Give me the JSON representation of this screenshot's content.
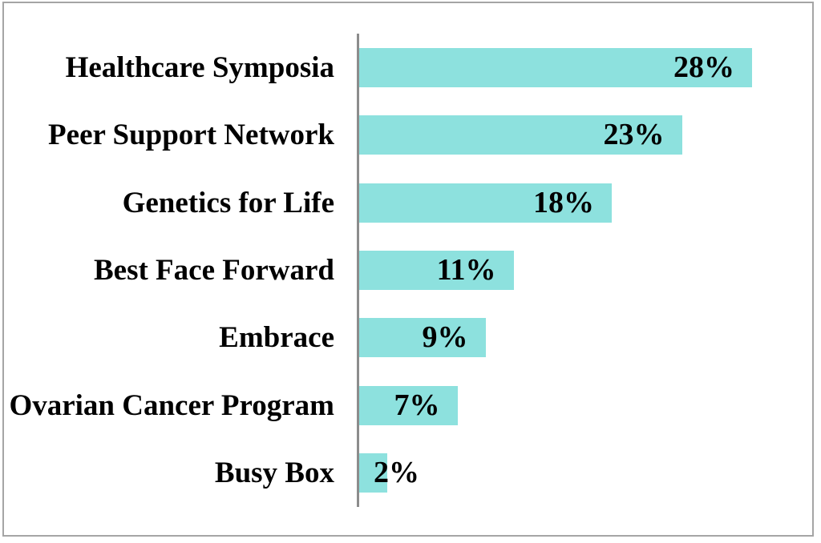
{
  "chart_data": {
    "type": "bar",
    "orientation": "horizontal",
    "title": "",
    "xlabel": "",
    "ylabel": "",
    "categories": [
      "Healthcare Symposia",
      "Peer Support Network",
      "Genetics for Life",
      "Best Face Forward",
      "Embrace",
      "Ovarian Cancer Program",
      "Busy Box"
    ],
    "values": [
      28,
      23,
      18,
      11,
      9,
      7,
      2
    ],
    "value_labels": [
      "28%",
      "23%",
      "18%",
      "11%",
      "9%",
      "7%",
      "2%"
    ],
    "value_label_position": "inside-end",
    "xlim": [
      0,
      33
    ],
    "grid": false,
    "legend": "none",
    "colors": {
      "bar": "#8de1de",
      "axis_line": "#8c8c8c",
      "frame_border": "#a5a5a5",
      "text": "#000000",
      "background": "#ffffff"
    }
  }
}
